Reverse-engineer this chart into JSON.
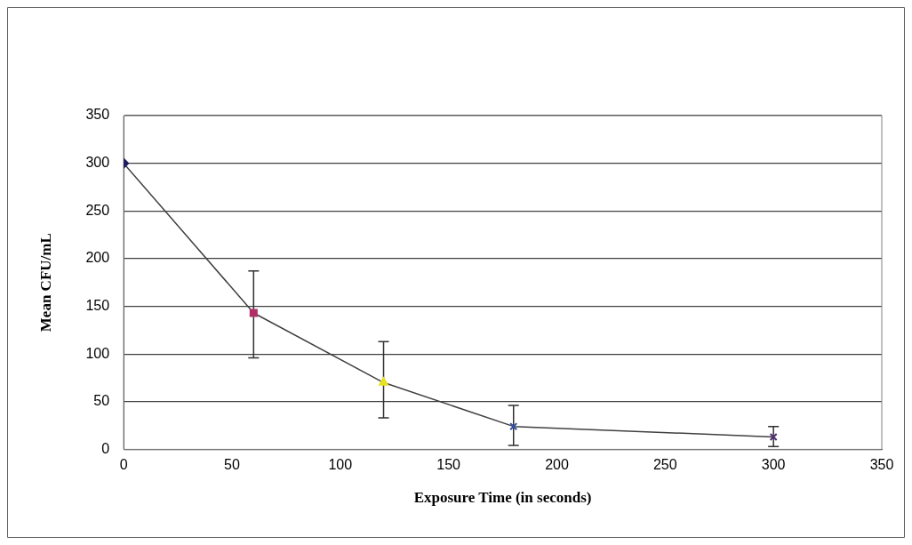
{
  "chart_data": {
    "type": "line",
    "xlabel": "Exposure Time (in seconds)",
    "ylabel": "Mean CFU/mL",
    "x": [
      0,
      60,
      120,
      180,
      300
    ],
    "series": [
      {
        "color": "#404040",
        "marker": "none",
        "values": [
          300,
          143,
          70,
          24,
          13
        ],
        "errors": [
          null,
          [
            96,
            187
          ],
          [
            33,
            113
          ],
          [
            4,
            46
          ],
          [
            3,
            24
          ]
        ]
      },
      {
        "type": "scatter",
        "x": [
          0
        ],
        "color": "#1f1f5f",
        "marker": "diamond",
        "values": [
          300
        ]
      },
      {
        "type": "scatter",
        "x": [
          60
        ],
        "color": "#b0306a",
        "marker": "square",
        "values": [
          143
        ]
      },
      {
        "type": "scatter",
        "x": [
          120
        ],
        "color": "#e8e020",
        "marker": "triangle",
        "values": [
          70
        ]
      },
      {
        "type": "scatter",
        "x": [
          180
        ],
        "color": "#3050a0",
        "marker": "cross",
        "values": [
          24
        ]
      },
      {
        "type": "scatter",
        "x": [
          300
        ],
        "color": "#503070",
        "marker": "cross",
        "values": [
          13
        ]
      }
    ],
    "xlim": [
      0,
      350
    ],
    "xticks": [
      0,
      50,
      100,
      150,
      200,
      250,
      300,
      350
    ],
    "ylim": [
      0,
      350
    ],
    "yticks": [
      0,
      50,
      100,
      150,
      200,
      250,
      300,
      350
    ],
    "grid": "y",
    "line_style": "solid",
    "legend": false
  }
}
